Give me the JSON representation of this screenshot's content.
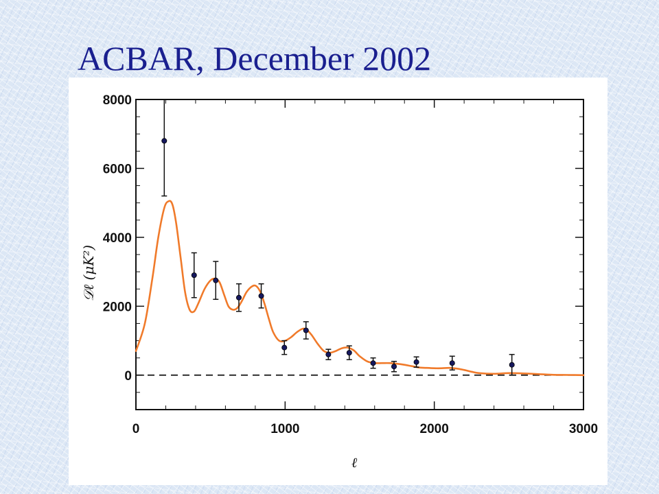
{
  "slide": {
    "title": "ACBAR, December 2002"
  },
  "colors": {
    "title": "#1a1f8f",
    "model_curve": "#f07a2a",
    "data_points": "#16185e",
    "error_bars": "#111111",
    "zero_line": "#111111"
  },
  "chart_data": {
    "type": "scatter",
    "title": "",
    "xlabel": "ℓ",
    "ylabel": "𝒟ℓ  (μK²)",
    "xlim": [
      0,
      3000
    ],
    "ylim": [
      -1000,
      8000
    ],
    "x_ticks": [
      0,
      1000,
      2000,
      3000
    ],
    "y_ticks": [
      0,
      2000,
      4000,
      6000,
      8000
    ],
    "x_tick_labels": [
      "0",
      "1000",
      "2000",
      "3000"
    ],
    "y_tick_labels": [
      "0",
      "2000",
      "4000",
      "6000",
      "8000"
    ],
    "grid": false,
    "legend": "none",
    "series": [
      {
        "kind": "errorbar",
        "x": [
          190,
          390,
          535,
          690,
          840,
          995,
          1140,
          1290,
          1430,
          1590,
          1730,
          1880,
          2120,
          2520
        ],
        "y": [
          6800,
          2900,
          2750,
          2250,
          2300,
          800,
          1300,
          600,
          650,
          350,
          250,
          380,
          350,
          300
        ],
        "yerr": [
          1600,
          650,
          550,
          400,
          350,
          200,
          250,
          150,
          200,
          150,
          150,
          150,
          200,
          300
        ]
      },
      {
        "kind": "model_curve",
        "x": [
          0,
          60,
          110,
          150,
          190,
          220,
          245,
          270,
          300,
          330,
          360,
          390,
          420,
          460,
          500,
          530,
          560,
          590,
          620,
          650,
          680,
          710,
          740,
          770,
          800,
          830,
          860,
          890,
          920,
          960,
          1000,
          1040,
          1080,
          1120,
          1150,
          1180,
          1220,
          1260,
          1300,
          1340,
          1380,
          1420,
          1460,
          1500,
          1550,
          1600,
          1650,
          1700,
          1750,
          1800,
          1850,
          1900,
          1950,
          2000,
          2050,
          2100,
          2150,
          2200,
          2250,
          2300,
          2400,
          2500,
          2600,
          2700,
          2800,
          2900,
          3000
        ],
        "y": [
          700,
          1500,
          2800,
          4000,
          4850,
          5050,
          4950,
          4400,
          3400,
          2400,
          1900,
          1850,
          2100,
          2500,
          2750,
          2800,
          2700,
          2350,
          2000,
          1900,
          1950,
          2150,
          2400,
          2550,
          2600,
          2450,
          2100,
          1650,
          1250,
          1000,
          1000,
          1100,
          1250,
          1350,
          1300,
          1150,
          900,
          700,
          650,
          700,
          780,
          800,
          720,
          550,
          400,
          350,
          350,
          350,
          330,
          300,
          260,
          220,
          210,
          200,
          200,
          210,
          190,
          150,
          100,
          60,
          40,
          60,
          50,
          30,
          10,
          5,
          0
        ]
      },
      {
        "kind": "reference_line",
        "y": 0
      }
    ]
  }
}
